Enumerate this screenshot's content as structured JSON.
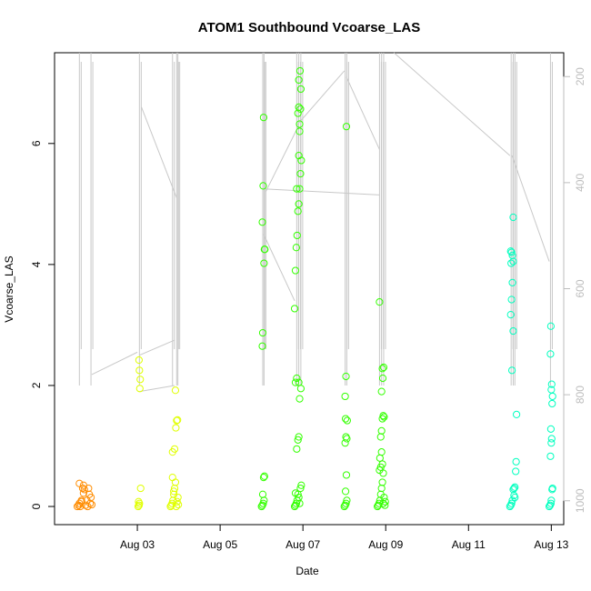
{
  "chart_data": {
    "type": "scatter",
    "title": "ATOM1 Southbound Vcoarse_LAS",
    "xlabel": "Date",
    "ylabel": "Vcoarse_LAS",
    "x_start": "Aug 01",
    "xlim": [
      1.0,
      13.3
    ],
    "ylim": [
      -0.3,
      7.5
    ],
    "x_ticks": [
      {
        "day": 3,
        "label": "Aug 03"
      },
      {
        "day": 5,
        "label": "Aug 05"
      },
      {
        "day": 7,
        "label": "Aug 07"
      },
      {
        "day": 9,
        "label": "Aug 09"
      },
      {
        "day": 11,
        "label": "Aug 11"
      },
      {
        "day": 13,
        "label": "Aug 13"
      }
    ],
    "y_ticks": [
      0,
      2,
      4,
      6
    ],
    "right_axis": {
      "lim": [
        1045,
        155
      ],
      "ticks": [
        200,
        400,
        600,
        800,
        1000
      ],
      "color": "#bdbdbd"
    },
    "grid": false,
    "legend": "none",
    "series": [
      {
        "color": "#ff8c00",
        "points": [
          [
            1.55,
            0
          ],
          [
            1.58,
            0.02
          ],
          [
            1.6,
            0.05
          ],
          [
            1.62,
            0
          ],
          [
            1.65,
            0.1
          ],
          [
            1.68,
            0.3
          ],
          [
            1.7,
            0.35
          ],
          [
            1.72,
            0.28
          ],
          [
            1.75,
            0.02
          ],
          [
            1.78,
            0.1
          ],
          [
            1.8,
            0
          ],
          [
            1.82,
            0.3
          ],
          [
            1.84,
            0.2
          ],
          [
            1.86,
            0.05
          ],
          [
            1.88,
            0.15
          ],
          [
            1.9,
            0.03
          ],
          [
            1.6,
            0.38
          ],
          [
            1.7,
            0.22
          ],
          [
            1.65,
            0.08
          ]
        ]
      },
      {
        "color": "#e0ff00",
        "points": [
          [
            3.02,
            0
          ],
          [
            3.04,
            0.02
          ],
          [
            3.05,
            0.05
          ],
          [
            3.06,
            1.95
          ],
          [
            3.07,
            2.1
          ],
          [
            3.05,
            2.25
          ],
          [
            3.04,
            2.42
          ],
          [
            3.08,
            0.3
          ],
          [
            3.03,
            0.08
          ],
          [
            3.8,
            0
          ],
          [
            3.82,
            0.02
          ],
          [
            3.84,
            0.05
          ],
          [
            3.86,
            0.1
          ],
          [
            3.88,
            0.2
          ],
          [
            3.9,
            0.3
          ],
          [
            3.92,
            0.4
          ],
          [
            3.85,
            0.48
          ],
          [
            3.94,
            0
          ],
          [
            3.96,
            0.08
          ],
          [
            3.98,
            0.15
          ],
          [
            3.85,
            0.9
          ],
          [
            3.9,
            0.95
          ],
          [
            3.93,
            1.3
          ],
          [
            3.95,
            1.42
          ],
          [
            3.97,
            1.43
          ],
          [
            3.92,
            1.92
          ],
          [
            3.88,
            0.25
          ],
          [
            3.99,
            0.03
          ]
        ]
      },
      {
        "color": "#33ff00",
        "points": [
          [
            6.0,
            0
          ],
          [
            6.02,
            0.02
          ],
          [
            6.04,
            0.05
          ],
          [
            6.06,
            0.1
          ],
          [
            6.03,
            0.2
          ],
          [
            6.05,
            0.48
          ],
          [
            6.07,
            0.5
          ],
          [
            6.02,
            2.65
          ],
          [
            6.03,
            2.87
          ],
          [
            6.06,
            4.02
          ],
          [
            6.07,
            4.25
          ],
          [
            6.08,
            4.25
          ],
          [
            6.02,
            4.7
          ],
          [
            6.04,
            5.3
          ],
          [
            6.05,
            6.43
          ],
          [
            6.8,
            0
          ],
          [
            6.82,
            0.02
          ],
          [
            6.84,
            0.05
          ],
          [
            6.86,
            0.1
          ],
          [
            6.88,
            0.2
          ],
          [
            6.9,
            0.15
          ],
          [
            6.92,
            0.05
          ],
          [
            6.94,
            0.3
          ],
          [
            6.96,
            0.35
          ],
          [
            6.82,
            0.22
          ],
          [
            6.85,
            0.95
          ],
          [
            6.88,
            1.1
          ],
          [
            6.9,
            1.15
          ],
          [
            6.92,
            1.78
          ],
          [
            6.95,
            1.95
          ],
          [
            6.82,
            2.05
          ],
          [
            6.85,
            2.12
          ],
          [
            6.9,
            2.05
          ],
          [
            6.8,
            3.27
          ],
          [
            6.82,
            3.9
          ],
          [
            6.84,
            4.28
          ],
          [
            6.86,
            4.48
          ],
          [
            6.88,
            4.88
          ],
          [
            6.9,
            5.0
          ],
          [
            6.92,
            5.25
          ],
          [
            6.94,
            5.5
          ],
          [
            6.96,
            5.72
          ],
          [
            6.85,
            5.25
          ],
          [
            6.9,
            5.8
          ],
          [
            6.92,
            6.2
          ],
          [
            6.88,
            6.5
          ],
          [
            6.9,
            6.6
          ],
          [
            6.94,
            6.57
          ],
          [
            6.92,
            6.32
          ],
          [
            6.95,
            6.9
          ],
          [
            6.9,
            7.05
          ],
          [
            6.93,
            7.2
          ],
          [
            8.0,
            0
          ],
          [
            8.02,
            0.02
          ],
          [
            8.04,
            0.05
          ],
          [
            8.06,
            0.1
          ],
          [
            8.03,
            0.25
          ],
          [
            8.05,
            0.52
          ],
          [
            8.02,
            1.05
          ],
          [
            8.04,
            1.15
          ],
          [
            8.06,
            1.12
          ],
          [
            8.03,
            1.45
          ],
          [
            8.07,
            1.42
          ],
          [
            8.02,
            1.82
          ],
          [
            8.04,
            2.15
          ],
          [
            8.05,
            6.28
          ],
          [
            8.8,
            0
          ],
          [
            8.82,
            0.02
          ],
          [
            8.84,
            0.05
          ],
          [
            8.86,
            0.1
          ],
          [
            8.88,
            0.2
          ],
          [
            8.9,
            0.3
          ],
          [
            8.92,
            0.4
          ],
          [
            8.94,
            0.05
          ],
          [
            8.96,
            0.15
          ],
          [
            8.85,
            0.6
          ],
          [
            8.88,
            0.65
          ],
          [
            8.9,
            0.9
          ],
          [
            8.92,
            0.7
          ],
          [
            8.94,
            0.55
          ],
          [
            8.86,
            0.8
          ],
          [
            8.88,
            1.15
          ],
          [
            8.9,
            1.25
          ],
          [
            8.92,
            1.45
          ],
          [
            8.94,
            1.5
          ],
          [
            8.96,
            1.48
          ],
          [
            8.9,
            1.9
          ],
          [
            8.93,
            2.12
          ],
          [
            8.95,
            2.3
          ],
          [
            8.92,
            2.28
          ],
          [
            8.85,
            3.38
          ],
          [
            8.98,
            0.02
          ],
          [
            8.99,
            0.08
          ]
        ]
      },
      {
        "color": "#00ffbf",
        "points": [
          [
            12.0,
            0
          ],
          [
            12.02,
            0.02
          ],
          [
            12.04,
            0.05
          ],
          [
            12.06,
            0.1
          ],
          [
            12.08,
            0.28
          ],
          [
            12.1,
            0.3
          ],
          [
            12.12,
            0.15
          ],
          [
            12.05,
            2.25
          ],
          [
            12.08,
            2.9
          ],
          [
            12.02,
            3.17
          ],
          [
            12.04,
            3.42
          ],
          [
            12.06,
            3.7
          ],
          [
            12.03,
            4.02
          ],
          [
            12.06,
            4.15
          ],
          [
            12.08,
            4.05
          ],
          [
            12.02,
            4.22
          ],
          [
            12.04,
            4.2
          ],
          [
            12.08,
            4.78
          ],
          [
            12.1,
            0.18
          ],
          [
            12.12,
            0.32
          ],
          [
            12.14,
            0.58
          ],
          [
            12.15,
            0.74
          ],
          [
            12.16,
            1.52
          ],
          [
            12.95,
            0
          ],
          [
            12.97,
            0.02
          ],
          [
            12.99,
            0.05
          ],
          [
            13.0,
            0.1
          ],
          [
            13.02,
            0.28
          ],
          [
            13.03,
            0.3
          ],
          [
            12.98,
            0.83
          ],
          [
            13.0,
            1.05
          ],
          [
            13.01,
            1.12
          ],
          [
            12.99,
            1.28
          ],
          [
            13.02,
            1.7
          ],
          [
            13.03,
            1.82
          ],
          [
            13.0,
            1.93
          ],
          [
            13.01,
            2.02
          ],
          [
            12.98,
            2.52
          ],
          [
            12.99,
            2.98
          ]
        ]
      }
    ]
  }
}
